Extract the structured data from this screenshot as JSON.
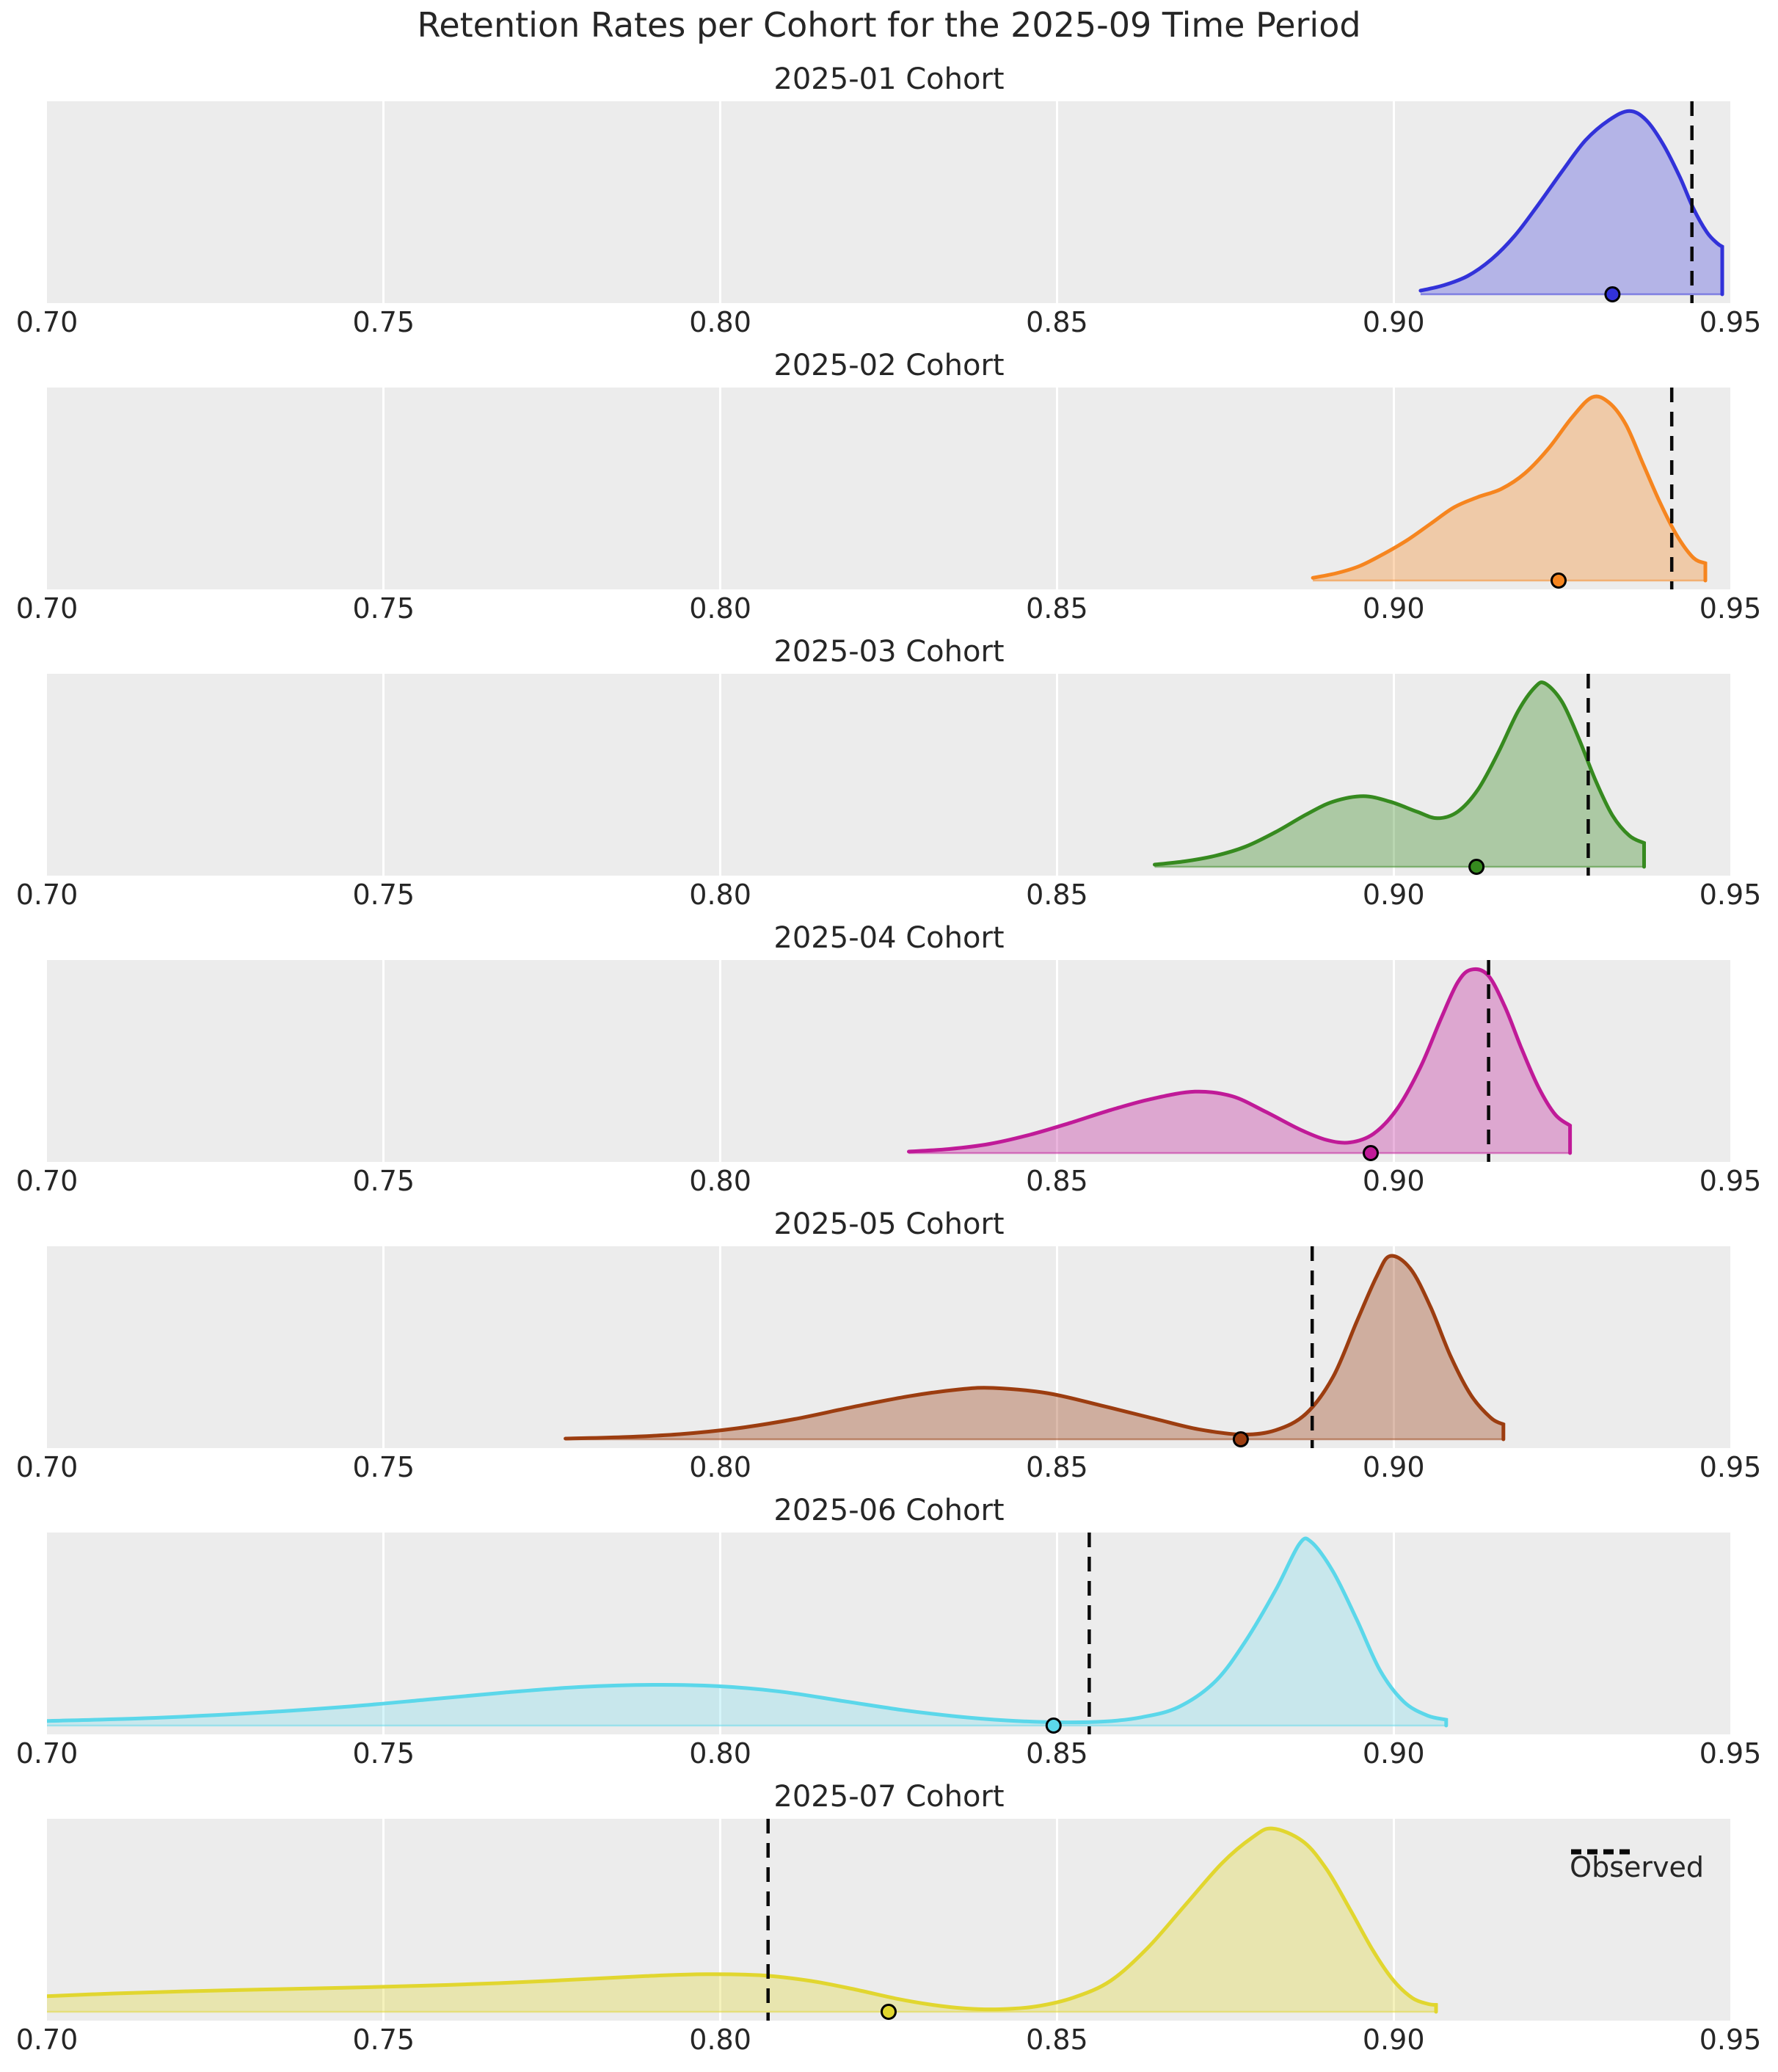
{
  "figure": {
    "suptitle": "Retention Rates per Cohort for the 2025-09 Time Period",
    "background": "#ffffff",
    "axes_background": "#ececec",
    "gridline_color": "#ffffff",
    "text_color": "#262626",
    "observed_line_color": "#0a0a0a"
  },
  "legend": {
    "label": "Observed",
    "style": "dashed-black-line"
  },
  "axis": {
    "xmin": 0.7,
    "xmax": 0.95,
    "tick_values": [
      0.7,
      0.75,
      0.8,
      0.85,
      0.9,
      0.95
    ],
    "tick_labels": [
      "0.70",
      "0.75",
      "0.80",
      "0.85",
      "0.90",
      "0.95"
    ],
    "gridline_values": [
      0.75,
      0.8,
      0.85,
      0.9
    ]
  },
  "chart_data": [
    {
      "type": "area",
      "title": "2025-01 Cohort",
      "color": "#3232d9",
      "fill_opacity": 0.3,
      "observed": 0.9443,
      "dot": 0.9325,
      "clipped_left": false,
      "points": [
        [
          0.904,
          0.02
        ],
        [
          0.9075,
          0.05
        ],
        [
          0.911,
          0.1
        ],
        [
          0.9145,
          0.19
        ],
        [
          0.918,
          0.32
        ],
        [
          0.9215,
          0.49
        ],
        [
          0.925,
          0.67
        ],
        [
          0.9285,
          0.84
        ],
        [
          0.932,
          0.95
        ],
        [
          0.935,
          1.0
        ],
        [
          0.9375,
          0.95
        ],
        [
          0.94,
          0.82
        ],
        [
          0.9425,
          0.64
        ],
        [
          0.9445,
          0.47
        ],
        [
          0.9465,
          0.34
        ],
        [
          0.948,
          0.28
        ],
        [
          0.9488,
          0.26
        ]
      ]
    },
    {
      "type": "area",
      "title": "2025-02 Cohort",
      "color": "#f6851f",
      "fill_opacity": 0.33,
      "observed": 0.9413,
      "dot": 0.9245,
      "clipped_left": false,
      "points": [
        [
          0.888,
          0.015
        ],
        [
          0.8915,
          0.04
        ],
        [
          0.895,
          0.08
        ],
        [
          0.8985,
          0.145
        ],
        [
          0.902,
          0.22
        ],
        [
          0.9055,
          0.31
        ],
        [
          0.909,
          0.4
        ],
        [
          0.9125,
          0.455
        ],
        [
          0.916,
          0.5
        ],
        [
          0.9195,
          0.585
        ],
        [
          0.923,
          0.72
        ],
        [
          0.9265,
          0.89
        ],
        [
          0.9295,
          1.0
        ],
        [
          0.932,
          0.97
        ],
        [
          0.9345,
          0.85
        ],
        [
          0.937,
          0.64
        ],
        [
          0.9395,
          0.43
        ],
        [
          0.942,
          0.25
        ],
        [
          0.9445,
          0.125
        ],
        [
          0.9463,
          0.095
        ]
      ]
    },
    {
      "type": "area",
      "title": "2025-03 Cohort",
      "color": "#368a1f",
      "fill_opacity": 0.35,
      "observed": 0.9289,
      "dot": 0.9123,
      "clipped_left": false,
      "points": [
        [
          0.8645,
          0.012
        ],
        [
          0.869,
          0.03
        ],
        [
          0.8735,
          0.06
        ],
        [
          0.878,
          0.11
        ],
        [
          0.8825,
          0.19
        ],
        [
          0.887,
          0.285
        ],
        [
          0.891,
          0.355
        ],
        [
          0.8955,
          0.385
        ],
        [
          0.8995,
          0.355
        ],
        [
          0.9035,
          0.3
        ],
        [
          0.9065,
          0.265
        ],
        [
          0.9095,
          0.3
        ],
        [
          0.9125,
          0.42
        ],
        [
          0.9155,
          0.62
        ],
        [
          0.9185,
          0.85
        ],
        [
          0.921,
          0.98
        ],
        [
          0.9225,
          1.0
        ],
        [
          0.925,
          0.9
        ],
        [
          0.9275,
          0.7
        ],
        [
          0.93,
          0.47
        ],
        [
          0.9325,
          0.28
        ],
        [
          0.935,
          0.17
        ],
        [
          0.9372,
          0.13
        ]
      ]
    },
    {
      "type": "area",
      "title": "2025-04 Cohort",
      "color": "#c01a98",
      "fill_opacity": 0.33,
      "observed": 0.9141,
      "dot": 0.8966,
      "clipped_left": false,
      "points": [
        [
          0.828,
          0.008
        ],
        [
          0.834,
          0.022
        ],
        [
          0.84,
          0.05
        ],
        [
          0.846,
          0.1
        ],
        [
          0.852,
          0.165
        ],
        [
          0.858,
          0.235
        ],
        [
          0.864,
          0.295
        ],
        [
          0.8705,
          0.335
        ],
        [
          0.876,
          0.31
        ],
        [
          0.881,
          0.225
        ],
        [
          0.886,
          0.13
        ],
        [
          0.89,
          0.072
        ],
        [
          0.8935,
          0.058
        ],
        [
          0.897,
          0.105
        ],
        [
          0.9005,
          0.24
        ],
        [
          0.904,
          0.47
        ],
        [
          0.907,
          0.73
        ],
        [
          0.9095,
          0.93
        ],
        [
          0.9115,
          1.0
        ],
        [
          0.914,
          0.97
        ],
        [
          0.9165,
          0.8
        ],
        [
          0.919,
          0.57
        ],
        [
          0.9215,
          0.36
        ],
        [
          0.924,
          0.21
        ],
        [
          0.9262,
          0.15
        ]
      ]
    },
    {
      "type": "area",
      "title": "2025-05 Cohort",
      "color": "#9c3d10",
      "fill_opacity": 0.35,
      "observed": 0.8879,
      "dot": 0.8773,
      "clipped_left": false,
      "points": [
        [
          0.777,
          0.004
        ],
        [
          0.7855,
          0.012
        ],
        [
          0.794,
          0.028
        ],
        [
          0.8025,
          0.06
        ],
        [
          0.811,
          0.11
        ],
        [
          0.8195,
          0.175
        ],
        [
          0.828,
          0.235
        ],
        [
          0.8355,
          0.272
        ],
        [
          0.8405,
          0.28
        ],
        [
          0.8485,
          0.252
        ],
        [
          0.8565,
          0.185
        ],
        [
          0.8645,
          0.112
        ],
        [
          0.871,
          0.055
        ],
        [
          0.8775,
          0.026
        ],
        [
          0.8825,
          0.05
        ],
        [
          0.887,
          0.14
        ],
        [
          0.891,
          0.34
        ],
        [
          0.8945,
          0.64
        ],
        [
          0.8975,
          0.89
        ],
        [
          0.8995,
          1.0
        ],
        [
          0.9025,
          0.93
        ],
        [
          0.9055,
          0.72
        ],
        [
          0.9085,
          0.45
        ],
        [
          0.9115,
          0.24
        ],
        [
          0.9145,
          0.115
        ],
        [
          0.9163,
          0.082
        ]
      ]
    },
    {
      "type": "area",
      "title": "2025-06 Cohort",
      "color": "#5bd7ea",
      "fill_opacity": 0.25,
      "observed": 0.8548,
      "dot": 0.8495,
      "clipped_left": true,
      "points": [
        [
          0.7,
          0.025
        ],
        [
          0.7145,
          0.04
        ],
        [
          0.729,
          0.065
        ],
        [
          0.7435,
          0.1
        ],
        [
          0.756,
          0.14
        ],
        [
          0.768,
          0.18
        ],
        [
          0.779,
          0.21
        ],
        [
          0.79,
          0.222
        ],
        [
          0.7995,
          0.215
        ],
        [
          0.809,
          0.185
        ],
        [
          0.818,
          0.135
        ],
        [
          0.827,
          0.085
        ],
        [
          0.835,
          0.05
        ],
        [
          0.8425,
          0.028
        ],
        [
          0.85,
          0.018
        ],
        [
          0.857,
          0.022
        ],
        [
          0.8625,
          0.045
        ],
        [
          0.868,
          0.1
        ],
        [
          0.8735,
          0.24
        ],
        [
          0.878,
          0.46
        ],
        [
          0.8825,
          0.74
        ],
        [
          0.886,
          0.99
        ],
        [
          0.8878,
          1.0
        ],
        [
          0.891,
          0.84
        ],
        [
          0.8945,
          0.58
        ],
        [
          0.898,
          0.3
        ],
        [
          0.9015,
          0.13
        ],
        [
          0.905,
          0.055
        ],
        [
          0.9078,
          0.032
        ]
      ]
    },
    {
      "type": "area",
      "title": "2025-07 Cohort",
      "color": "#e1d62f",
      "fill_opacity": 0.32,
      "observed": 0.8071,
      "dot": 0.825,
      "clipped_left": true,
      "has_legend": true,
      "points": [
        [
          0.7,
          0.085
        ],
        [
          0.71,
          0.1
        ],
        [
          0.721,
          0.112
        ],
        [
          0.7325,
          0.122
        ],
        [
          0.744,
          0.131
        ],
        [
          0.7555,
          0.142
        ],
        [
          0.767,
          0.156
        ],
        [
          0.778,
          0.175
        ],
        [
          0.789,
          0.195
        ],
        [
          0.798,
          0.205
        ],
        [
          0.8065,
          0.198
        ],
        [
          0.8135,
          0.168
        ],
        [
          0.82,
          0.122
        ],
        [
          0.826,
          0.073
        ],
        [
          0.8315,
          0.038
        ],
        [
          0.8365,
          0.018
        ],
        [
          0.8415,
          0.014
        ],
        [
          0.847,
          0.03
        ],
        [
          0.8525,
          0.078
        ],
        [
          0.858,
          0.17
        ],
        [
          0.8635,
          0.35
        ],
        [
          0.869,
          0.58
        ],
        [
          0.8745,
          0.81
        ],
        [
          0.879,
          0.95
        ],
        [
          0.882,
          1.0
        ],
        [
          0.8865,
          0.93
        ],
        [
          0.89,
          0.78
        ],
        [
          0.8935,
          0.56
        ],
        [
          0.897,
          0.33
        ],
        [
          0.9,
          0.17
        ],
        [
          0.9028,
          0.075
        ],
        [
          0.9052,
          0.042
        ],
        [
          0.9063,
          0.038
        ]
      ]
    }
  ]
}
